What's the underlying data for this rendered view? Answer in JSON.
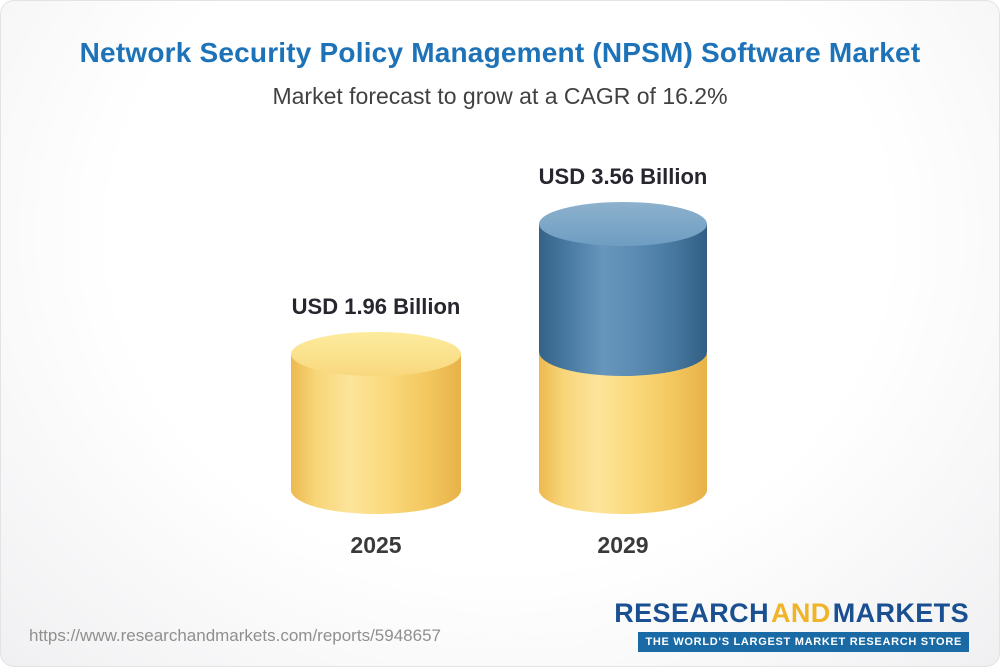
{
  "header": {
    "title": "Network Security Policy Management (NPSM) Software Market",
    "subtitle": "Market forecast to grow at a CAGR of 16.2%"
  },
  "chart_data": {
    "type": "bar",
    "bar_style": "3d-cylinder",
    "title": "Network Security Policy Management (NPSM) Software Market",
    "subtitle": "Market forecast to grow at a CAGR of 16.2%",
    "categories": [
      "2025",
      "2029"
    ],
    "values": [
      1.96,
      3.56
    ],
    "value_unit": "USD Billion",
    "value_labels": [
      "USD 1.96 Billion",
      "USD 3.56 Billion"
    ],
    "cagr": "16.2%",
    "ylim": [
      0,
      4
    ],
    "grid": false,
    "legend": false,
    "colors": {
      "title_blue": "#1e73b8",
      "bar_2025": "#f7cf6a",
      "bar_2025_cap": "#fbe091",
      "bar_2029_top_segment": "#4d7fa8",
      "bar_2029_top_cap": "#79a5c6",
      "bar_2029_bottom_segment": "#f7cf6a"
    }
  },
  "footer": {
    "source_url": "https://www.researchandmarkets.com/reports/5948657",
    "logo": {
      "research": "RESEARCH",
      "and": "AND",
      "markets": "MARKETS",
      "tagline": "THE WORLD'S LARGEST MARKET RESEARCH STORE",
      "blue": "#1a5091",
      "gold": "#f0b429"
    }
  }
}
